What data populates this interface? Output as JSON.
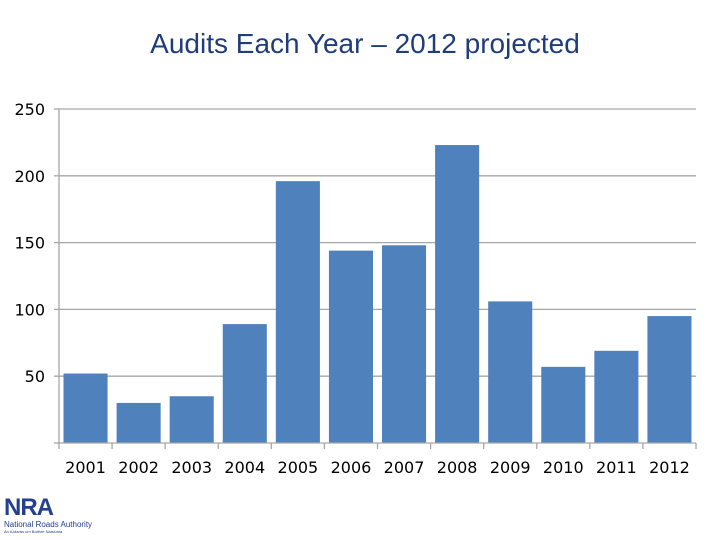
{
  "chart_data": {
    "type": "bar",
    "title": "Audits Each Year – 2012 projected",
    "xlabel": "",
    "ylabel": "",
    "categories": [
      "2001",
      "2002",
      "2003",
      "2004",
      "2005",
      "2006",
      "2007",
      "2008",
      "2009",
      "2010",
      "2011",
      "2012"
    ],
    "values": [
      52,
      30,
      35,
      89,
      196,
      144,
      148,
      223,
      106,
      57,
      69,
      95
    ],
    "ylim": [
      0,
      250
    ],
    "yticks": [
      50,
      100,
      150,
      200,
      250
    ],
    "grid": true,
    "legend": "none",
    "bar_color": "#4f81bd",
    "grid_color": "#a6a6a6"
  },
  "logo": {
    "mark": "NRA",
    "name": "National Roads Authority",
    "tagline": "An tÚdarás um Bóithre Náisiúnta"
  }
}
